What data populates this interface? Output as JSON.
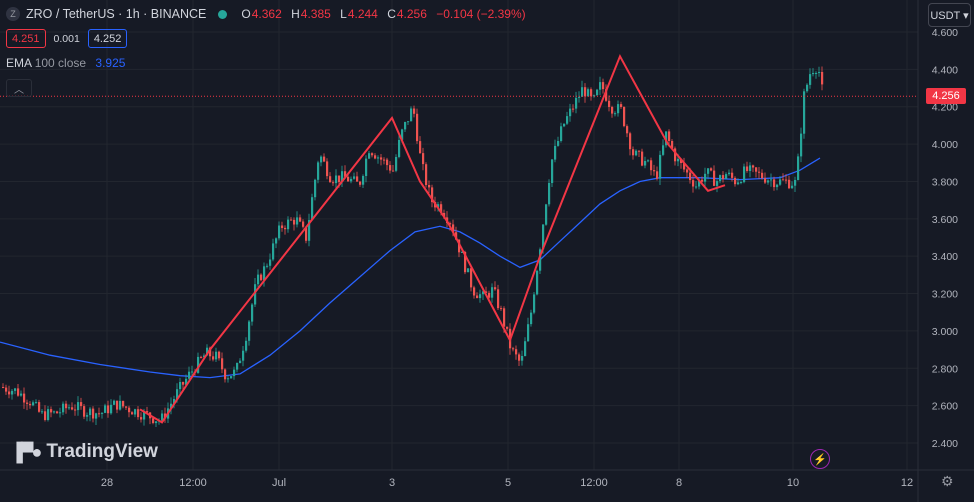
{
  "header": {
    "symbol_logo": "Z",
    "title": "ZRO / TetherUS · 1h · BINANCE",
    "open_label": "O",
    "open": "4.362",
    "high_label": "H",
    "high": "4.385",
    "low_label": "L",
    "low": "4.244",
    "close_label": "C",
    "close": "4.256",
    "change": "−0.104 (−2.39%)"
  },
  "quotes": {
    "bid": "4.251",
    "spread": "0.001",
    "ask": "4.252"
  },
  "indicator": {
    "name": "EMA",
    "params": "100 close",
    "value": "3.925"
  },
  "currency_button": "USDT ▾",
  "price_label": "4.256",
  "branding": "TradingView",
  "colors": {
    "up": "#26a69a",
    "down": "#ef5350",
    "zigzag": "#f23645",
    "ema": "#2962ff",
    "bg": "#161a25",
    "grid": "#22262f"
  },
  "chart_data": {
    "type": "candlestick",
    "y_axis_ticks": [
      "4.600",
      "4.400",
      "4.200",
      "4.000",
      "3.800",
      "3.600",
      "3.400",
      "3.200",
      "3.000",
      "2.800",
      "2.600",
      "2.400"
    ],
    "x_axis_ticks": [
      "28",
      "12:00",
      "Jul",
      "3",
      "5",
      "12:00",
      "8",
      "10",
      "12"
    ],
    "ylim": [
      2.3,
      4.6
    ],
    "current_price": 4.256,
    "ema100_value": 3.925,
    "price_path": [
      [
        0,
        2.7
      ],
      [
        15,
        2.68
      ],
      [
        30,
        2.62
      ],
      [
        40,
        2.55
      ],
      [
        55,
        2.56
      ],
      [
        70,
        2.6
      ],
      [
        85,
        2.57
      ],
      [
        100,
        2.56
      ],
      [
        115,
        2.61
      ],
      [
        130,
        2.58
      ],
      [
        145,
        2.55
      ],
      [
        160,
        2.52
      ],
      [
        175,
        2.66
      ],
      [
        190,
        2.78
      ],
      [
        205,
        2.88
      ],
      [
        215,
        2.86
      ],
      [
        225,
        2.76
      ],
      [
        235,
        2.78
      ],
      [
        245,
        2.98
      ],
      [
        255,
        3.25
      ],
      [
        265,
        3.35
      ],
      [
        280,
        3.56
      ],
      [
        295,
        3.6
      ],
      [
        305,
        3.5
      ],
      [
        318,
        3.95
      ],
      [
        330,
        3.82
      ],
      [
        345,
        3.82
      ],
      [
        358,
        3.78
      ],
      [
        368,
        3.98
      ],
      [
        380,
        3.92
      ],
      [
        392,
        3.86
      ],
      [
        400,
        4.05
      ],
      [
        412,
        4.2
      ],
      [
        420,
        3.9
      ],
      [
        430,
        3.7
      ],
      [
        440,
        3.66
      ],
      [
        450,
        3.58
      ],
      [
        462,
        3.38
      ],
      [
        472,
        3.22
      ],
      [
        482,
        3.18
      ],
      [
        492,
        3.22
      ],
      [
        500,
        3.1
      ],
      [
        510,
        2.9
      ],
      [
        520,
        2.82
      ],
      [
        530,
        3.1
      ],
      [
        540,
        3.5
      ],
      [
        550,
        3.9
      ],
      [
        562,
        4.1
      ],
      [
        572,
        4.2
      ],
      [
        582,
        4.3
      ],
      [
        592,
        4.22
      ],
      [
        600,
        4.32
      ],
      [
        610,
        4.2
      ],
      [
        620,
        4.18
      ],
      [
        632,
        3.95
      ],
      [
        645,
        3.9
      ],
      [
        655,
        3.82
      ],
      [
        665,
        4.05
      ],
      [
        675,
        3.92
      ],
      [
        685,
        3.85
      ],
      [
        695,
        3.78
      ],
      [
        705,
        3.85
      ],
      [
        715,
        3.8
      ],
      [
        725,
        3.84
      ],
      [
        735,
        3.8
      ],
      [
        745,
        3.86
      ],
      [
        755,
        3.84
      ],
      [
        765,
        3.82
      ],
      [
        775,
        3.8
      ],
      [
        785,
        3.8
      ],
      [
        795,
        3.79
      ],
      [
        803,
        4.26
      ],
      [
        810,
        4.4
      ],
      [
        817,
        4.42
      ],
      [
        822,
        4.256
      ]
    ],
    "ema100": [
      [
        0,
        2.94
      ],
      [
        50,
        2.87
      ],
      [
        100,
        2.82
      ],
      [
        150,
        2.78
      ],
      [
        180,
        2.76
      ],
      [
        210,
        2.75
      ],
      [
        240,
        2.77
      ],
      [
        270,
        2.87
      ],
      [
        300,
        3.0
      ],
      [
        330,
        3.15
      ],
      [
        360,
        3.29
      ],
      [
        390,
        3.43
      ],
      [
        415,
        3.53
      ],
      [
        440,
        3.56
      ],
      [
        460,
        3.53
      ],
      [
        480,
        3.47
      ],
      [
        500,
        3.4
      ],
      [
        520,
        3.34
      ],
      [
        540,
        3.38
      ],
      [
        560,
        3.48
      ],
      [
        580,
        3.58
      ],
      [
        600,
        3.68
      ],
      [
        620,
        3.75
      ],
      [
        640,
        3.8
      ],
      [
        660,
        3.82
      ],
      [
        700,
        3.82
      ],
      [
        740,
        3.81
      ],
      [
        780,
        3.82
      ],
      [
        800,
        3.86
      ],
      [
        820,
        3.925
      ]
    ],
    "zigzag": [
      [
        140,
        2.58
      ],
      [
        162,
        2.51
      ],
      [
        210,
        2.9
      ],
      [
        392,
        4.14
      ],
      [
        420,
        3.8
      ],
      [
        448,
        3.58
      ],
      [
        510,
        2.95
      ],
      [
        540,
        3.4
      ],
      [
        620,
        4.47
      ],
      [
        668,
        4.0
      ],
      [
        708,
        3.75
      ],
      [
        725,
        3.78
      ]
    ]
  }
}
